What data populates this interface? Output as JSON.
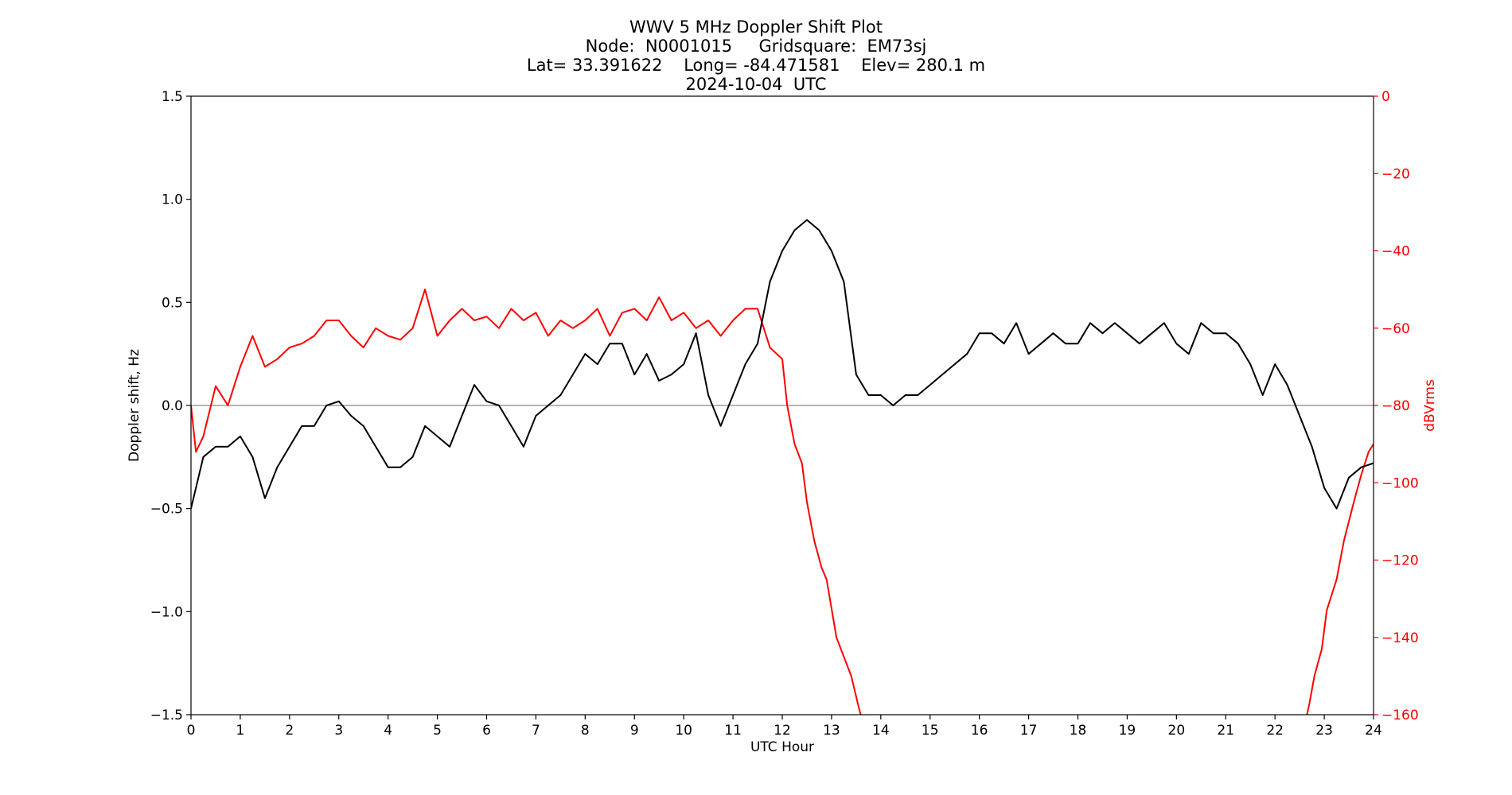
{
  "chart_data": {
    "type": "line",
    "title_lines": [
      "WWV 5 MHz Doppler Shift Plot",
      "Node:  N0001015     Gridsquare:  EM73sj",
      "Lat= 33.391622    Long= -84.471581    Elev= 280.1 m",
      "2024-10-04  UTC"
    ],
    "xlabel": "UTC Hour",
    "ylabel_left": "Doppler shift, Hz",
    "ylabel_right": "dBVrms",
    "xlim": [
      0,
      24
    ],
    "ylim_left": [
      -1.5,
      1.5
    ],
    "ylim_right": [
      -160,
      0
    ],
    "x_ticks": [
      "0",
      "1",
      "2",
      "3",
      "4",
      "5",
      "6",
      "7",
      "8",
      "9",
      "10",
      "11",
      "12",
      "13",
      "14",
      "15",
      "16",
      "17",
      "18",
      "19",
      "20",
      "21",
      "22",
      "23",
      "24"
    ],
    "y_ticks_left": [
      "1.5",
      "1.0",
      "0.5",
      "0.0",
      "−0.5",
      "−1.0",
      "−1.5"
    ],
    "y_ticks_right": [
      "0",
      "−20",
      "−40",
      "−60",
      "−80",
      "−100",
      "−120",
      "−140",
      "−160"
    ],
    "zero_line": true,
    "grid": false,
    "colors": {
      "doppler": "#000000",
      "power": "#ff0000",
      "zero_line": "#888888"
    },
    "series": [
      {
        "axis": "left",
        "x": [
          0,
          0.25,
          0.5,
          0.75,
          1,
          1.25,
          1.5,
          1.75,
          2,
          2.25,
          2.5,
          2.75,
          3,
          3.25,
          3.5,
          3.75,
          4,
          4.25,
          4.5,
          4.75,
          5,
          5.25,
          5.5,
          5.75,
          6,
          6.25,
          6.5,
          6.75,
          7,
          7.25,
          7.5,
          7.75,
          8,
          8.25,
          8.5,
          8.75,
          9,
          9.25,
          9.5,
          9.75,
          10,
          10.25,
          10.5,
          10.75,
          11,
          11.25,
          11.5,
          11.75,
          12,
          12.25,
          12.5,
          12.75,
          13,
          13.25,
          13.5,
          13.75,
          14,
          14.25,
          14.5,
          14.75,
          15,
          15.25,
          15.5,
          15.75,
          16,
          16.25,
          16.5,
          16.75,
          17,
          17.25,
          17.5,
          17.75,
          18,
          18.25,
          18.5,
          18.75,
          19,
          19.25,
          19.5,
          19.75,
          20,
          20.25,
          20.5,
          20.75,
          21,
          21.25,
          21.5,
          21.75,
          22,
          22.25,
          22.5,
          22.75,
          23,
          23.25,
          23.5,
          23.75,
          24
        ],
        "y": [
          -0.5,
          -0.25,
          -0.2,
          -0.2,
          -0.15,
          -0.25,
          -0.45,
          -0.3,
          -0.2,
          -0.1,
          -0.1,
          0,
          0.02,
          -0.05,
          -0.1,
          -0.2,
          -0.3,
          -0.3,
          -0.25,
          -0.1,
          -0.15,
          -0.2,
          -0.05,
          0.1,
          0.02,
          0,
          -0.1,
          -0.2,
          -0.05,
          0,
          0.05,
          0.15,
          0.25,
          0.2,
          0.3,
          0.3,
          0.15,
          0.25,
          0.12,
          0.15,
          0.2,
          0.35,
          0.05,
          -0.1,
          0.05,
          0.2,
          0.3,
          0.6,
          0.75,
          0.85,
          0.9,
          0.85,
          0.75,
          0.6,
          0.15,
          0.05,
          0.05,
          0,
          0.05,
          0.05,
          0.1,
          0.15,
          0.2,
          0.25,
          0.35,
          0.35,
          0.3,
          0.4,
          0.25,
          0.3,
          0.35,
          0.3,
          0.3,
          0.4,
          0.35,
          0.4,
          0.35,
          0.3,
          0.35,
          0.4,
          0.3,
          0.25,
          0.4,
          0.35,
          0.35,
          0.3,
          0.2,
          0.05,
          0.2,
          0.1,
          -0.05,
          -0.2,
          -0.4,
          -0.5,
          -0.35,
          -0.3,
          -0.28
        ]
      },
      {
        "axis": "right",
        "x": [
          0,
          0.1,
          0.25,
          0.5,
          0.75,
          1,
          1.25,
          1.5,
          1.75,
          2,
          2.25,
          2.5,
          2.75,
          3,
          3.25,
          3.5,
          3.75,
          4,
          4.25,
          4.5,
          4.75,
          5,
          5.25,
          5.5,
          5.75,
          6,
          6.25,
          6.5,
          6.75,
          7,
          7.25,
          7.5,
          7.75,
          8,
          8.25,
          8.5,
          8.75,
          9,
          9.25,
          9.5,
          9.75,
          10,
          10.25,
          10.5,
          10.75,
          11,
          11.25,
          11.5,
          11.75,
          12,
          12.1,
          12.25,
          12.4,
          12.5,
          12.65,
          12.8,
          12.9,
          13.1,
          13.25,
          13.4,
          13.55,
          13.65,
          22.6,
          22.7,
          22.8,
          22.95,
          23.05,
          23.25,
          23.4,
          23.6,
          23.75,
          23.9,
          24
        ],
        "y": [
          -80,
          -92,
          -88,
          -75,
          -80,
          -70,
          -62,
          -70,
          -68,
          -65,
          -64,
          -62,
          -58,
          -58,
          -62,
          -65,
          -60,
          -62,
          -63,
          -60,
          -50,
          -62,
          -58,
          -55,
          -58,
          -57,
          -60,
          -55,
          -58,
          -56,
          -62,
          -58,
          -60,
          -58,
          -55,
          -62,
          -56,
          -55,
          -58,
          -52,
          -58,
          -56,
          -60,
          -58,
          -62,
          -58,
          -55,
          -55,
          -65,
          -68,
          -80,
          -90,
          -95,
          -105,
          -115,
          -122,
          -125,
          -140,
          -145,
          -150,
          -158,
          -163,
          -163,
          -157,
          -150,
          -143,
          -133,
          -125,
          -115,
          -105,
          -98,
          -92,
          -90
        ]
      }
    ]
  }
}
